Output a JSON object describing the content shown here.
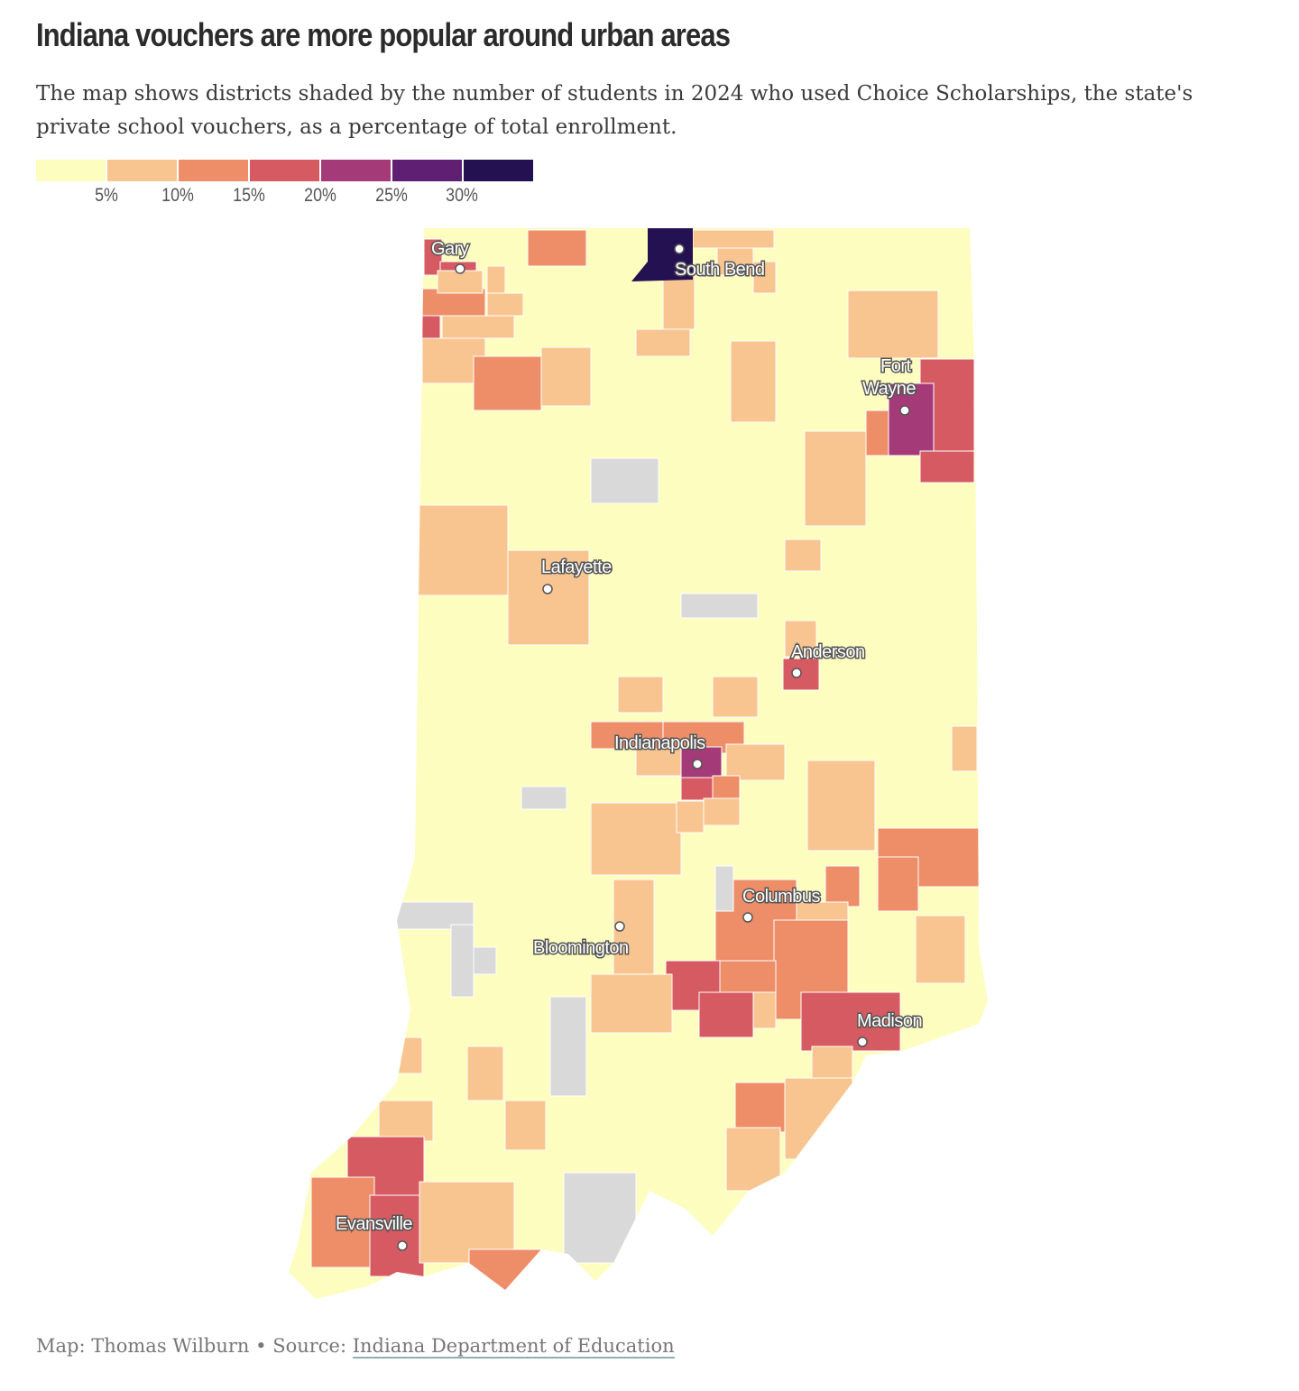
{
  "title": "Indiana vouchers are more popular around urban areas",
  "subtitle": "The map shows districts shaded by the number of students in 2024 who used Choice Scholarships, the state's private school vouchers, as a percentage of total enrollment.",
  "legend": {
    "colors": [
      "#fcfdbf",
      "#f8c591",
      "#ee8e68",
      "#d65a62",
      "#a43b78",
      "#5f1f72",
      "#241152"
    ],
    "labels": [
      "5%",
      "10%",
      "15%",
      "20%",
      "25%",
      "30%"
    ],
    "no_data_color": "#d9d9d9"
  },
  "cities": [
    "Gary",
    "South Bend",
    "Fort Wayne",
    "Lafayette",
    "Anderson",
    "Indianapolis",
    "Columbus",
    "Bloomington",
    "Madison",
    "Evansville"
  ],
  "footer": {
    "credit": "Map: Thomas Wilburn • Source: ",
    "source_link": "Indiana Department of Education"
  }
}
